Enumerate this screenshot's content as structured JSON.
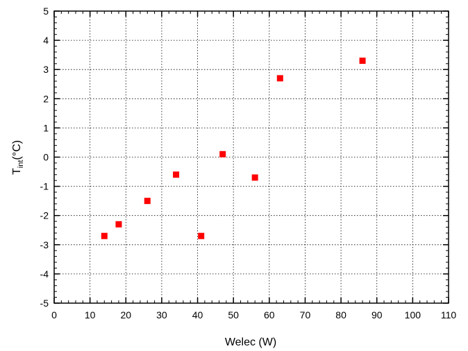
{
  "chart_data": {
    "type": "scatter",
    "xlabel": "Welec (W)",
    "ylabel": {
      "main": "T",
      "sub": "int",
      "unit": "(°C)"
    },
    "xlim": [
      0,
      110
    ],
    "ylim": [
      -5,
      5
    ],
    "xticks": [
      0,
      10,
      20,
      30,
      40,
      50,
      60,
      70,
      80,
      90,
      100,
      110
    ],
    "yticks": [
      -5,
      -4,
      -3,
      -2,
      -1,
      0,
      1,
      2,
      3,
      4,
      5
    ],
    "grid": true,
    "marker": "square",
    "colors": {
      "marker": "#ff0000",
      "axis": "#000000",
      "grid": "#000000",
      "background": "#ffffff"
    },
    "points": [
      {
        "x": 14,
        "y": -2.7
      },
      {
        "x": 18,
        "y": -2.3
      },
      {
        "x": 26,
        "y": -1.5
      },
      {
        "x": 34,
        "y": -0.6
      },
      {
        "x": 41,
        "y": -2.7
      },
      {
        "x": 47,
        "y": 0.1
      },
      {
        "x": 56,
        "y": -0.7
      },
      {
        "x": 63,
        "y": 2.7
      },
      {
        "x": 86,
        "y": 3.3
      }
    ]
  }
}
